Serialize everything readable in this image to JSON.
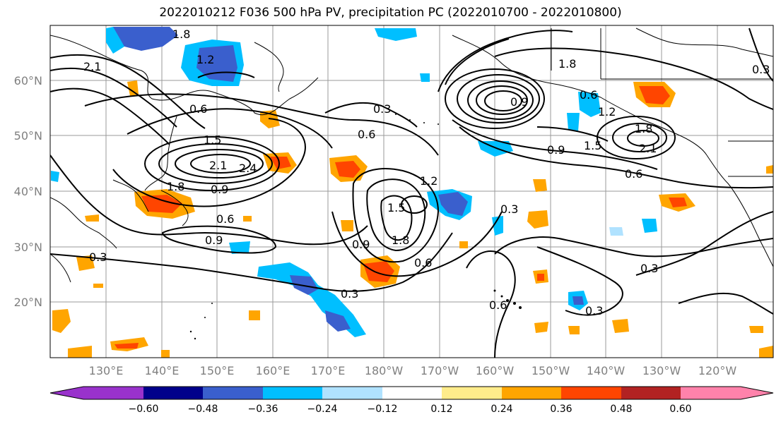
{
  "title": "2022010212 F036 500 hPa PV, precipitation PC (2022010700 - 2022010800)",
  "lat_labels": [
    "60°N",
    "50°N",
    "40°N",
    "30°N",
    "20°N"
  ],
  "lon_labels": [
    "130°E",
    "140°E",
    "150°E",
    "160°E",
    "170°E",
    "180°W",
    "170°W",
    "160°W",
    "150°W",
    "140°W",
    "130°W",
    "120°W"
  ],
  "colorbar": {
    "ticks": [
      "−0.60",
      "−0.48",
      "−0.36",
      "−0.24",
      "−0.12",
      "0.12",
      "0.24",
      "0.36",
      "0.48",
      "0.60"
    ],
    "colors": [
      "#9932CC",
      "#00008B",
      "#3A5FCD",
      "#00BFFF",
      "#B0E2FF",
      "#FFFFFF",
      "#FFEC8B",
      "#FFA500",
      "#FF4500",
      "#B22222",
      "#FF82AB"
    ]
  },
  "contour_labels": [
    "1.8",
    "1.2",
    "2.1",
    "0.6",
    "1.5",
    "2.1",
    "2.4",
    "1.8",
    "0.9",
    "0.3",
    "0.6",
    "0.3",
    "0.6",
    "0.9",
    "1.2",
    "1.5",
    "1.8",
    "0.9",
    "0.6",
    "0.3",
    "1.8",
    "0.6",
    "0.9",
    "1.5",
    "1.2",
    "1.8",
    "2.1",
    "0.6",
    "0.9",
    "0.3",
    "0.3",
    "0.6",
    "0.3",
    "0.3"
  ]
}
